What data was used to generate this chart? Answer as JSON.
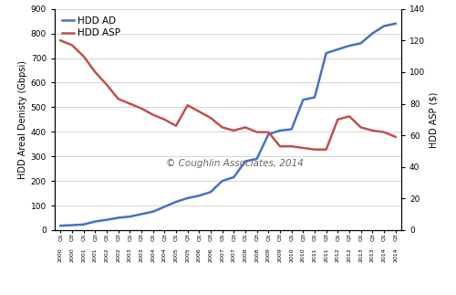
{
  "ylabel_left": "HDD Areal Denisty (Gbpsi)",
  "ylabel_right": "HDD ASP ($)",
  "watermark": "© Coughlin Associates, 2014",
  "ylim_left": [
    0,
    900
  ],
  "ylim_right": [
    0,
    140
  ],
  "yticks_left": [
    0,
    100,
    200,
    300,
    400,
    500,
    600,
    700,
    800,
    900
  ],
  "yticks_right": [
    0,
    20,
    40,
    60,
    80,
    100,
    120,
    140
  ],
  "hdd_ad_color": "#4472C4",
  "hdd_asp_color": "#C0504D",
  "background_color": "#ffffff",
  "legend_labels": [
    "HDD AD",
    "HDD ASP"
  ],
  "hdd_ad": [
    18,
    20,
    23,
    35,
    42,
    50,
    55,
    65,
    75,
    95,
    115,
    130,
    140,
    155,
    200,
    215,
    280,
    290,
    390,
    405,
    410,
    530,
    540,
    720,
    735,
    750,
    760,
    800,
    830,
    840
  ],
  "hdd_asp": [
    120,
    117,
    110,
    100,
    92,
    83,
    80,
    77,
    73,
    70,
    66,
    79,
    75,
    71,
    65,
    63,
    65,
    62,
    62,
    53,
    53,
    52,
    51,
    51,
    70,
    72,
    65,
    63,
    62,
    59
  ]
}
